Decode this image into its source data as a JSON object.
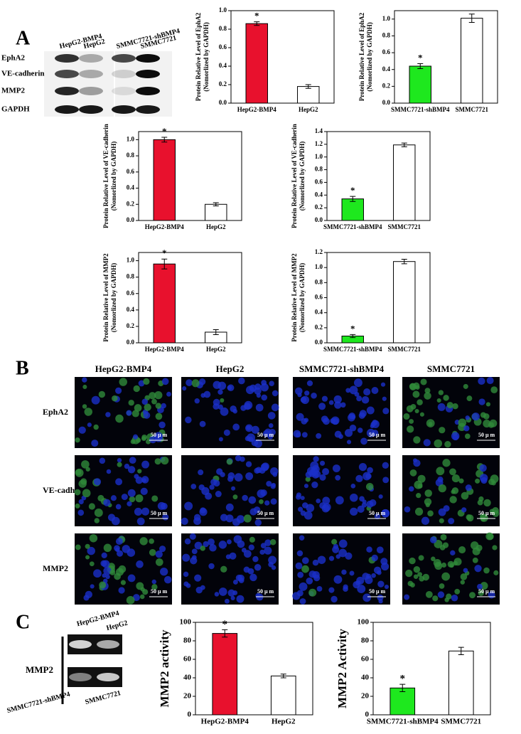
{
  "panels": {
    "a": "A",
    "b": "B",
    "c": "C"
  },
  "blot_a": {
    "lanes": [
      "HepG2-BMP4",
      "HepG2",
      "SMMC7721-shBMP4",
      "SMMC7721"
    ],
    "rows": [
      "EphA2",
      "VE-cadherin",
      "MMP2",
      "GAPDH"
    ]
  },
  "microscopy": {
    "columns": [
      "HepG2-BMP4",
      "HepG2",
      "SMMC7721-shBMP4",
      "SMMC7721"
    ],
    "rows": [
      "EphA2",
      "VE-cadherin",
      "MMP2"
    ],
    "scale_bar": "50 μ m"
  },
  "gel_c": {
    "top_lanes": [
      "HepG2-BMP4",
      "HepG2"
    ],
    "bottom_lanes": [
      "SMMC7721-shBMP4",
      "SMMC7721"
    ],
    "label": "MMP2"
  },
  "chart_data": [
    {
      "type": "bar",
      "y_label": [
        "Protein Relative Level of EphA2",
        "(Nomorlized by GAPDH)"
      ],
      "categories": [
        "HepG2-BMP4",
        "HepG2"
      ],
      "values": [
        0.86,
        0.18
      ],
      "errors": [
        0.02,
        0.02
      ],
      "colors": [
        "#e8112d",
        "#ffffff"
      ],
      "annotation": "*",
      "ylim": [
        0,
        1.0
      ],
      "yticks": [
        {
          "value": 0,
          "label": "0.0"
        },
        {
          "value": 0.2,
          "label": "0.2"
        },
        {
          "value": 0.4,
          "label": "0.4"
        },
        {
          "value": 0.6,
          "label": "0.6"
        },
        {
          "value": 0.8,
          "label": "0.8"
        },
        {
          "value": 1.0,
          "label": "1.0"
        }
      ]
    },
    {
      "type": "bar",
      "y_label": [
        "Protein Relative Level of EphA2",
        "(Nomorlized by GAPDH)"
      ],
      "categories": [
        "SMMC7721-shBMP4",
        "SMMC7721"
      ],
      "values": [
        0.44,
        1.01
      ],
      "errors": [
        0.03,
        0.05
      ],
      "colors": [
        "#1ee81e",
        "#ffffff"
      ],
      "annotation": "*",
      "ylim": [
        0,
        1.1
      ],
      "yticks": [
        {
          "value": 0,
          "label": "0.0"
        },
        {
          "value": 0.2,
          "label": "0.2"
        },
        {
          "value": 0.4,
          "label": "0.4"
        },
        {
          "value": 0.6,
          "label": "0.6"
        },
        {
          "value": 0.8,
          "label": "0.8"
        },
        {
          "value": 1.0,
          "label": "1.0"
        }
      ]
    },
    {
      "type": "bar",
      "y_label": [
        "Protein Relative Level of VE-cadherin",
        "(Nomorlized by GAPDH)"
      ],
      "categories": [
        "HepG2-BMP4",
        "HepG2"
      ],
      "values": [
        1.0,
        0.2
      ],
      "errors": [
        0.03,
        0.02
      ],
      "colors": [
        "#e8112d",
        "#ffffff"
      ],
      "annotation": "*",
      "ylim": [
        0,
        1.1
      ],
      "yticks": [
        {
          "value": 0,
          "label": "0.0"
        },
        {
          "value": 0.2,
          "label": "0.2"
        },
        {
          "value": 0.4,
          "label": "0.4"
        },
        {
          "value": 0.6,
          "label": "0.6"
        },
        {
          "value": 0.8,
          "label": "0.8"
        },
        {
          "value": 1.0,
          "label": "1.0"
        }
      ]
    },
    {
      "type": "bar",
      "y_label": [
        "Protein Relative Level of VE-cadherin",
        "(Nomorlized by GAPDH)"
      ],
      "categories": [
        "SMMC7721-shBMP4",
        "SMMC7721"
      ],
      "values": [
        0.34,
        1.19
      ],
      "errors": [
        0.04,
        0.03
      ],
      "colors": [
        "#1ee81e",
        "#ffffff"
      ],
      "annotation": "*",
      "ylim": [
        0,
        1.4
      ],
      "yticks": [
        {
          "value": 0,
          "label": "0.0"
        },
        {
          "value": 0.2,
          "label": "0.2"
        },
        {
          "value": 0.4,
          "label": "0.4"
        },
        {
          "value": 0.6,
          "label": "0.6"
        },
        {
          "value": 0.8,
          "label": "0.8"
        },
        {
          "value": 1.0,
          "label": "1.0"
        },
        {
          "value": 1.2,
          "label": "1.2"
        },
        {
          "value": 1.4,
          "label": "1.4"
        }
      ]
    },
    {
      "type": "bar",
      "y_label": [
        "Protein Relative Level of MMP2",
        "(Nomorlized by GAPDH)"
      ],
      "categories": [
        "HepG2-BMP4",
        "HepG2"
      ],
      "values": [
        0.96,
        0.13
      ],
      "errors": [
        0.06,
        0.03
      ],
      "colors": [
        "#e8112d",
        "#ffffff"
      ],
      "annotation": "*",
      "ylim": [
        0,
        1.1
      ],
      "yticks": [
        {
          "value": 0,
          "label": "0.0"
        },
        {
          "value": 0.2,
          "label": "0.2"
        },
        {
          "value": 0.4,
          "label": "0.4"
        },
        {
          "value": 0.6,
          "label": "0.6"
        },
        {
          "value": 0.8,
          "label": "0.8"
        },
        {
          "value": 1.0,
          "label": "1.0"
        }
      ]
    },
    {
      "type": "bar",
      "y_label": [
        "Protein Relative Level of MMP2",
        "(Nomorlized by GAPDH)"
      ],
      "categories": [
        "SMMC7721-shBMP4",
        "SMMC7721"
      ],
      "values": [
        0.09,
        1.08
      ],
      "errors": [
        0.02,
        0.03
      ],
      "colors": [
        "#1ee81e",
        "#ffffff"
      ],
      "annotation": "*",
      "ylim": [
        0,
        1.2
      ],
      "yticks": [
        {
          "value": 0,
          "label": "0.0"
        },
        {
          "value": 0.2,
          "label": "0.2"
        },
        {
          "value": 0.4,
          "label": "0.4"
        },
        {
          "value": 0.6,
          "label": "0.6"
        },
        {
          "value": 0.8,
          "label": "0.8"
        },
        {
          "value": 1.0,
          "label": "1.0"
        },
        {
          "value": 1.2,
          "label": "1.2"
        }
      ]
    },
    {
      "type": "bar",
      "y_label": [
        "MMP2  activity"
      ],
      "categories": [
        "HepG2-BMP4",
        "HepG2"
      ],
      "values": [
        88,
        42
      ],
      "errors": [
        4,
        2
      ],
      "colors": [
        "#e8112d",
        "#ffffff"
      ],
      "annotation": "*",
      "ylim": [
        0,
        100
      ],
      "yticks": [
        0,
        20,
        40,
        60,
        80,
        100
      ]
    },
    {
      "type": "bar",
      "y_label": [
        "MMP2  Activity"
      ],
      "categories": [
        "SMMC7721-shBMP4",
        "SMMC7721"
      ],
      "values": [
        29,
        69
      ],
      "errors": [
        4,
        4
      ],
      "colors": [
        "#1ee81e",
        "#ffffff"
      ],
      "annotation": "*",
      "ylim": [
        0,
        100
      ],
      "yticks": [
        0,
        20,
        40,
        60,
        80,
        100
      ]
    }
  ]
}
